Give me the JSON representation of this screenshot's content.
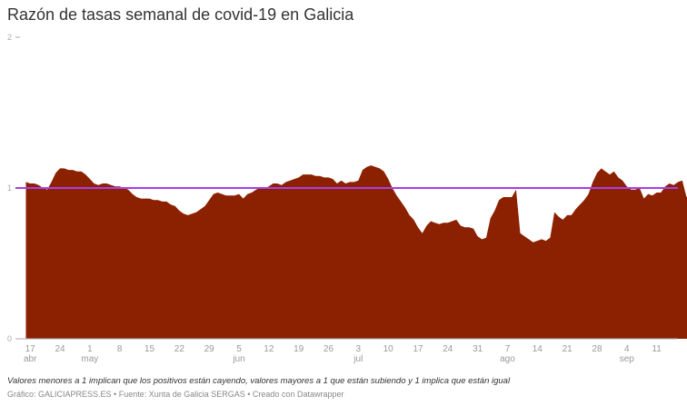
{
  "header": {
    "title": "Razón de tasas semanal de covid-19 en Galicia"
  },
  "footer": {
    "note": "Valores menores a 1 implican que los positivos están cayendo, valores mayores a 1 que están subiendo y 1 implica que están igual",
    "byline": "Gráfico: GALICIAPRESS.ES • Fuente: Xunta de Galicia SERGAS • Creado con Datawrapper"
  },
  "colors": {
    "area": "#8b2100",
    "reference_line": "#a83ee8",
    "axis": "#aaaaaa"
  },
  "chart_data": {
    "type": "area",
    "title": "Razón de tasas semanal de covid-19 en Galicia",
    "xlabel": "",
    "ylabel": "",
    "ylim": [
      0,
      2
    ],
    "yticks": [
      0,
      1,
      2
    ],
    "grid": false,
    "legend": null,
    "reference_line": {
      "y": 1,
      "color": "#a83ee8"
    },
    "x_start": "16 abr",
    "x_ticks": [
      {
        "day": 1,
        "label": "17",
        "month": "abr"
      },
      {
        "day": 8,
        "label": "24",
        "month": ""
      },
      {
        "day": 15,
        "label": "1",
        "month": "may"
      },
      {
        "day": 22,
        "label": "8",
        "month": ""
      },
      {
        "day": 29,
        "label": "15",
        "month": ""
      },
      {
        "day": 36,
        "label": "22",
        "month": ""
      },
      {
        "day": 43,
        "label": "29",
        "month": ""
      },
      {
        "day": 50,
        "label": "5",
        "month": "jun"
      },
      {
        "day": 57,
        "label": "12",
        "month": ""
      },
      {
        "day": 64,
        "label": "19",
        "month": ""
      },
      {
        "day": 71,
        "label": "26",
        "month": ""
      },
      {
        "day": 78,
        "label": "3",
        "month": "jul"
      },
      {
        "day": 85,
        "label": "10",
        "month": ""
      },
      {
        "day": 92,
        "label": "17",
        "month": ""
      },
      {
        "day": 99,
        "label": "24",
        "month": ""
      },
      {
        "day": 106,
        "label": "31",
        "month": ""
      },
      {
        "day": 113,
        "label": "7",
        "month": "ago"
      },
      {
        "day": 120,
        "label": "14",
        "month": ""
      },
      {
        "day": 127,
        "label": "21",
        "month": ""
      },
      {
        "day": 134,
        "label": "28",
        "month": ""
      },
      {
        "day": 141,
        "label": "4",
        "month": "sep"
      },
      {
        "day": 148,
        "label": "11",
        "month": ""
      }
    ],
    "values": [
      1.04,
      1.03,
      1.03,
      1.02,
      1.0,
      0.99,
      1.04,
      1.1,
      1.13,
      1.13,
      1.12,
      1.12,
      1.11,
      1.11,
      1.09,
      1.06,
      1.03,
      1.02,
      1.03,
      1.03,
      1.02,
      1.01,
      1.01,
      1.0,
      0.99,
      0.96,
      0.94,
      0.93,
      0.93,
      0.93,
      0.92,
      0.92,
      0.91,
      0.91,
      0.89,
      0.88,
      0.85,
      0.83,
      0.82,
      0.83,
      0.84,
      0.86,
      0.88,
      0.92,
      0.96,
      0.97,
      0.96,
      0.95,
      0.95,
      0.95,
      0.96,
      0.93,
      0.96,
      0.97,
      0.99,
      1.0,
      1.0,
      1.01,
      1.03,
      1.03,
      1.02,
      1.04,
      1.05,
      1.06,
      1.07,
      1.09,
      1.09,
      1.09,
      1.08,
      1.08,
      1.07,
      1.07,
      1.06,
      1.03,
      1.05,
      1.03,
      1.04,
      1.04,
      1.05,
      1.12,
      1.14,
      1.15,
      1.14,
      1.13,
      1.11,
      1.06,
      1.0,
      0.95,
      0.91,
      0.87,
      0.82,
      0.79,
      0.74,
      0.7,
      0.75,
      0.78,
      0.77,
      0.76,
      0.77,
      0.77,
      0.78,
      0.79,
      0.75,
      0.74,
      0.74,
      0.73,
      0.68,
      0.66,
      0.67,
      0.8,
      0.85,
      0.92,
      0.94,
      0.94,
      0.94,
      0.99,
      0.7,
      0.68,
      0.66,
      0.64,
      0.65,
      0.66,
      0.65,
      0.67,
      0.84,
      0.81,
      0.79,
      0.82,
      0.82,
      0.86,
      0.89,
      0.92,
      0.96,
      1.04,
      1.1,
      1.13,
      1.11,
      1.09,
      1.11,
      1.07,
      1.05,
      1.01,
      0.99,
      0.99,
      1.0,
      0.93,
      0.96,
      0.95,
      0.97,
      0.97,
      1.01,
      1.03,
      1.02,
      1.04,
      1.05,
      0.94,
      0.97,
      0.97,
      0.98,
      1.02
    ]
  }
}
